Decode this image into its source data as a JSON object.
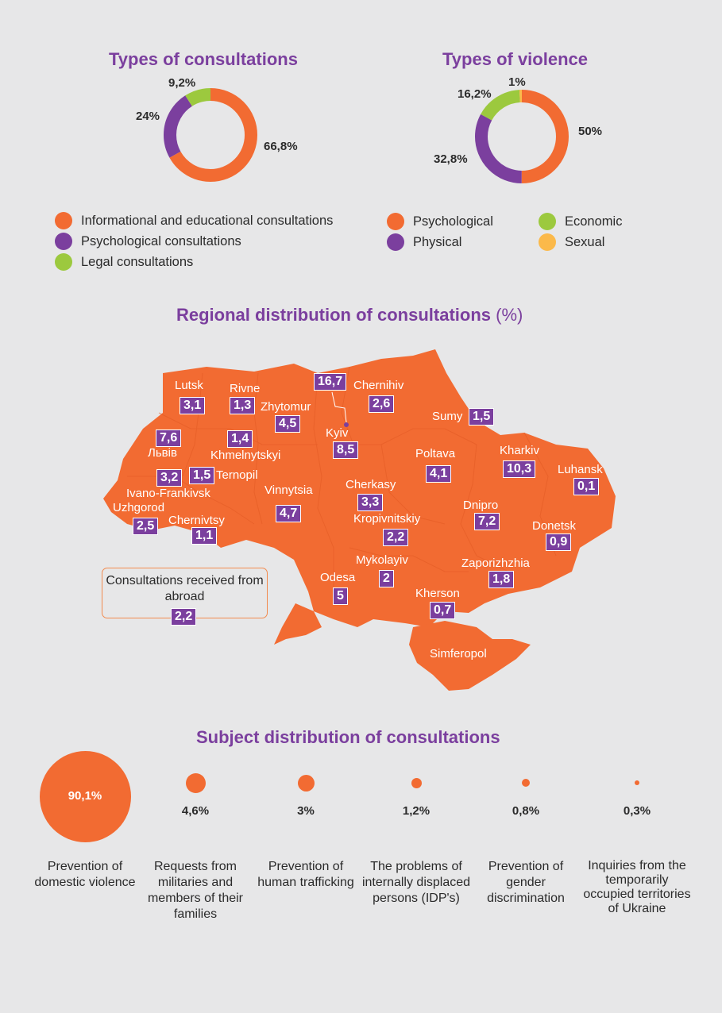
{
  "colors": {
    "orange": "#f26b32",
    "purple": "#7b3f9e",
    "green": "#9cc93e",
    "yellow": "#fbb94a",
    "background": "#e7e7e8"
  },
  "chart_data": [
    {
      "type": "pie",
      "title": "Types of consultations",
      "labels": [
        "Informational and educational consultations",
        "Psychological consultations",
        "Legal consultations"
      ],
      "values": [
        66.8,
        24,
        9.2
      ],
      "value_labels": [
        "66,8%",
        "24%",
        "9,2%"
      ],
      "colors": [
        "#f26b32",
        "#7b3f9e",
        "#9cc93e"
      ]
    },
    {
      "type": "pie",
      "title": "Types of violence",
      "labels": [
        "Psychological",
        "Physical",
        "Economic",
        "Sexual"
      ],
      "values": [
        50,
        32.8,
        16.2,
        1
      ],
      "value_labels": [
        "50%",
        "32,8%",
        "16,2%",
        "1%"
      ],
      "colors": [
        "#f26b32",
        "#7b3f9e",
        "#9cc93e",
        "#fbb94a"
      ]
    },
    {
      "type": "table",
      "title": "Regional distribution of consultations",
      "title_suffix": "(%)",
      "regions": [
        {
          "name": "Lutsk",
          "value": "3,1"
        },
        {
          "name": "Rivne",
          "value": "1,3"
        },
        {
          "name": "Zhytomur",
          "value": "4,5"
        },
        {
          "name": "",
          "value": "16,7"
        },
        {
          "name": "Chernihiv",
          "value": "2,6"
        },
        {
          "name": "Sumy",
          "value": "1,5"
        },
        {
          "name": "Львів",
          "value": "7,6"
        },
        {
          "name": "",
          "value": "1,4"
        },
        {
          "name": "Khmelnytskyi",
          "value": ""
        },
        {
          "name": "Kyiv",
          "value": "8,5"
        },
        {
          "name": "Poltava",
          "value": "4,1"
        },
        {
          "name": "Kharkiv",
          "value": "10,3"
        },
        {
          "name": "Luhansk",
          "value": "0,1"
        },
        {
          "name": "Ternopil",
          "value": "1,5"
        },
        {
          "name": "Ivano-Frankivsk",
          "value": "3,2"
        },
        {
          "name": "Uzhgorod",
          "value": "2,5"
        },
        {
          "name": "Chernivtsy",
          "value": "1,1"
        },
        {
          "name": "Vinnytsia",
          "value": "4,7"
        },
        {
          "name": "Cherkasy",
          "value": "3,3"
        },
        {
          "name": "Kropivnitskiy",
          "value": "2,2"
        },
        {
          "name": "Dnipro",
          "value": "7,2"
        },
        {
          "name": "Donetsk",
          "value": "0,9"
        },
        {
          "name": "Mykolayiv",
          "value": "2"
        },
        {
          "name": "Zaporizhzhia",
          "value": "1,8"
        },
        {
          "name": "Odesa",
          "value": "5"
        },
        {
          "name": "Kherson",
          "value": "0,7"
        },
        {
          "name": "Simferopol",
          "value": ""
        }
      ],
      "abroad": {
        "label": "Consultations received from abroad",
        "value": "2,2"
      }
    },
    {
      "type": "scatter",
      "title": "Subject distribution of consultations",
      "categories": [
        "Prevention of domestic violence",
        "Requests from militaries and members of their families",
        "Prevention of human trafficking",
        "The problems of internally displaced persons (IDP's)",
        "Prevention of gender discrimination",
        "Inquiries from the temporarily occupied territories of Ukraine"
      ],
      "values": [
        90.1,
        4.6,
        3,
        1.2,
        0.8,
        0.3
      ],
      "value_labels": [
        "90,1%",
        "4,6%",
        "3%",
        "1,2%",
        "0,8%",
        "0,3%"
      ]
    }
  ]
}
